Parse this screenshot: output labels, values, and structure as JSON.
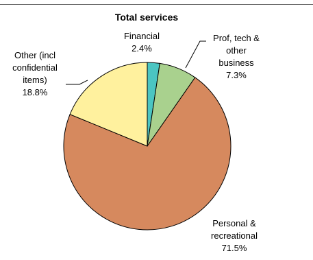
{
  "chart_data": {
    "type": "pie",
    "title": "Total services",
    "slices": [
      {
        "label_lines": [
          "Financial"
        ],
        "value_label": "2.4%",
        "value": 2.4,
        "color": "#4bc5c2"
      },
      {
        "label_lines": [
          "Prof, tech &",
          "other",
          "business"
        ],
        "value_label": "7.3%",
        "value": 7.3,
        "color": "#a9d18e"
      },
      {
        "label_lines": [
          "Personal &",
          "recreational"
        ],
        "value_label": "71.5%",
        "value": 71.5,
        "color": "#d6895e"
      },
      {
        "label_lines": [
          "Other (incl",
          "confidential",
          "items)"
        ],
        "value_label": "18.8%",
        "value": 18.8,
        "color": "#fff19e"
      }
    ],
    "legend": "none",
    "border_color": "#000000",
    "top_rule_color": "#666666"
  }
}
